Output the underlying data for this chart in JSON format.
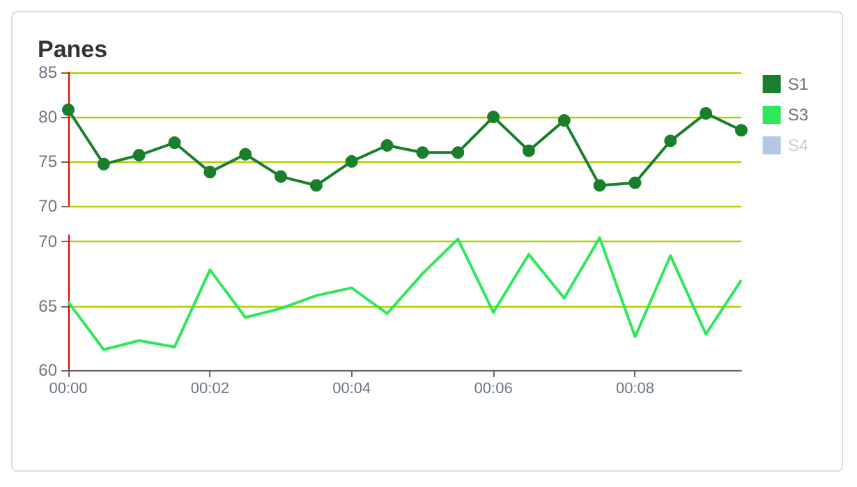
{
  "chart_data": [
    {
      "type": "line",
      "title": "Panes",
      "x": [
        0,
        0.5,
        1,
        1.5,
        2,
        2.5,
        3,
        3.5,
        4,
        4.5,
        5,
        5.5,
        6,
        6.5,
        7,
        7.5,
        8,
        8.5,
        9,
        9.5
      ],
      "xlim": [
        0,
        9.5
      ],
      "ylim": [
        70,
        85
      ],
      "yticks": [
        70,
        75,
        80,
        85
      ],
      "grid": "y",
      "legend": "right",
      "tick_labels": "y",
      "series": [
        {
          "name": "S1",
          "color": "#1a7f2a",
          "marker": "circle",
          "values": [
            80.8,
            74.7,
            75.7,
            77.1,
            73.8,
            75.8,
            73.3,
            72.3,
            75.0,
            76.8,
            76.0,
            76.0,
            80.0,
            76.2,
            79.6,
            72.3,
            72.6,
            77.3,
            80.4,
            78.5
          ]
        }
      ]
    },
    {
      "type": "line",
      "x": [
        0,
        0.5,
        1,
        1.5,
        2,
        2.5,
        3,
        3.5,
        4,
        4.5,
        5,
        5.5,
        6,
        6.5,
        7,
        7.5,
        8,
        8.5,
        9,
        9.5
      ],
      "xlim": [
        0,
        9.5
      ],
      "xticks": [
        {
          "value": 0,
          "label": "00:00"
        },
        {
          "value": 2,
          "label": "00:02"
        },
        {
          "value": 4,
          "label": "00:04"
        },
        {
          "value": 6,
          "label": "00:06"
        },
        {
          "value": 8,
          "label": "00:08"
        }
      ],
      "ylim": [
        60,
        70.5
      ],
      "yticks": [
        60,
        65,
        70
      ],
      "grid": "y",
      "legend": "right",
      "series": [
        {
          "name": "S3",
          "color": "#2ee85a",
          "marker": "none",
          "values": [
            65.3,
            61.6,
            62.3,
            61.8,
            67.8,
            64.1,
            64.8,
            65.8,
            66.4,
            64.4,
            67.5,
            70.2,
            64.5,
            69.0,
            65.6,
            70.3,
            62.6,
            68.9,
            62.8,
            67.0
          ]
        },
        {
          "name": "S4",
          "color": "#b4c8e4",
          "marker": "none",
          "values": [
            null,
            null,
            null,
            null,
            null,
            null,
            null,
            null,
            null,
            null,
            null,
            null,
            null,
            null,
            null,
            null,
            null,
            null,
            null,
            null
          ]
        }
      ]
    }
  ]
}
